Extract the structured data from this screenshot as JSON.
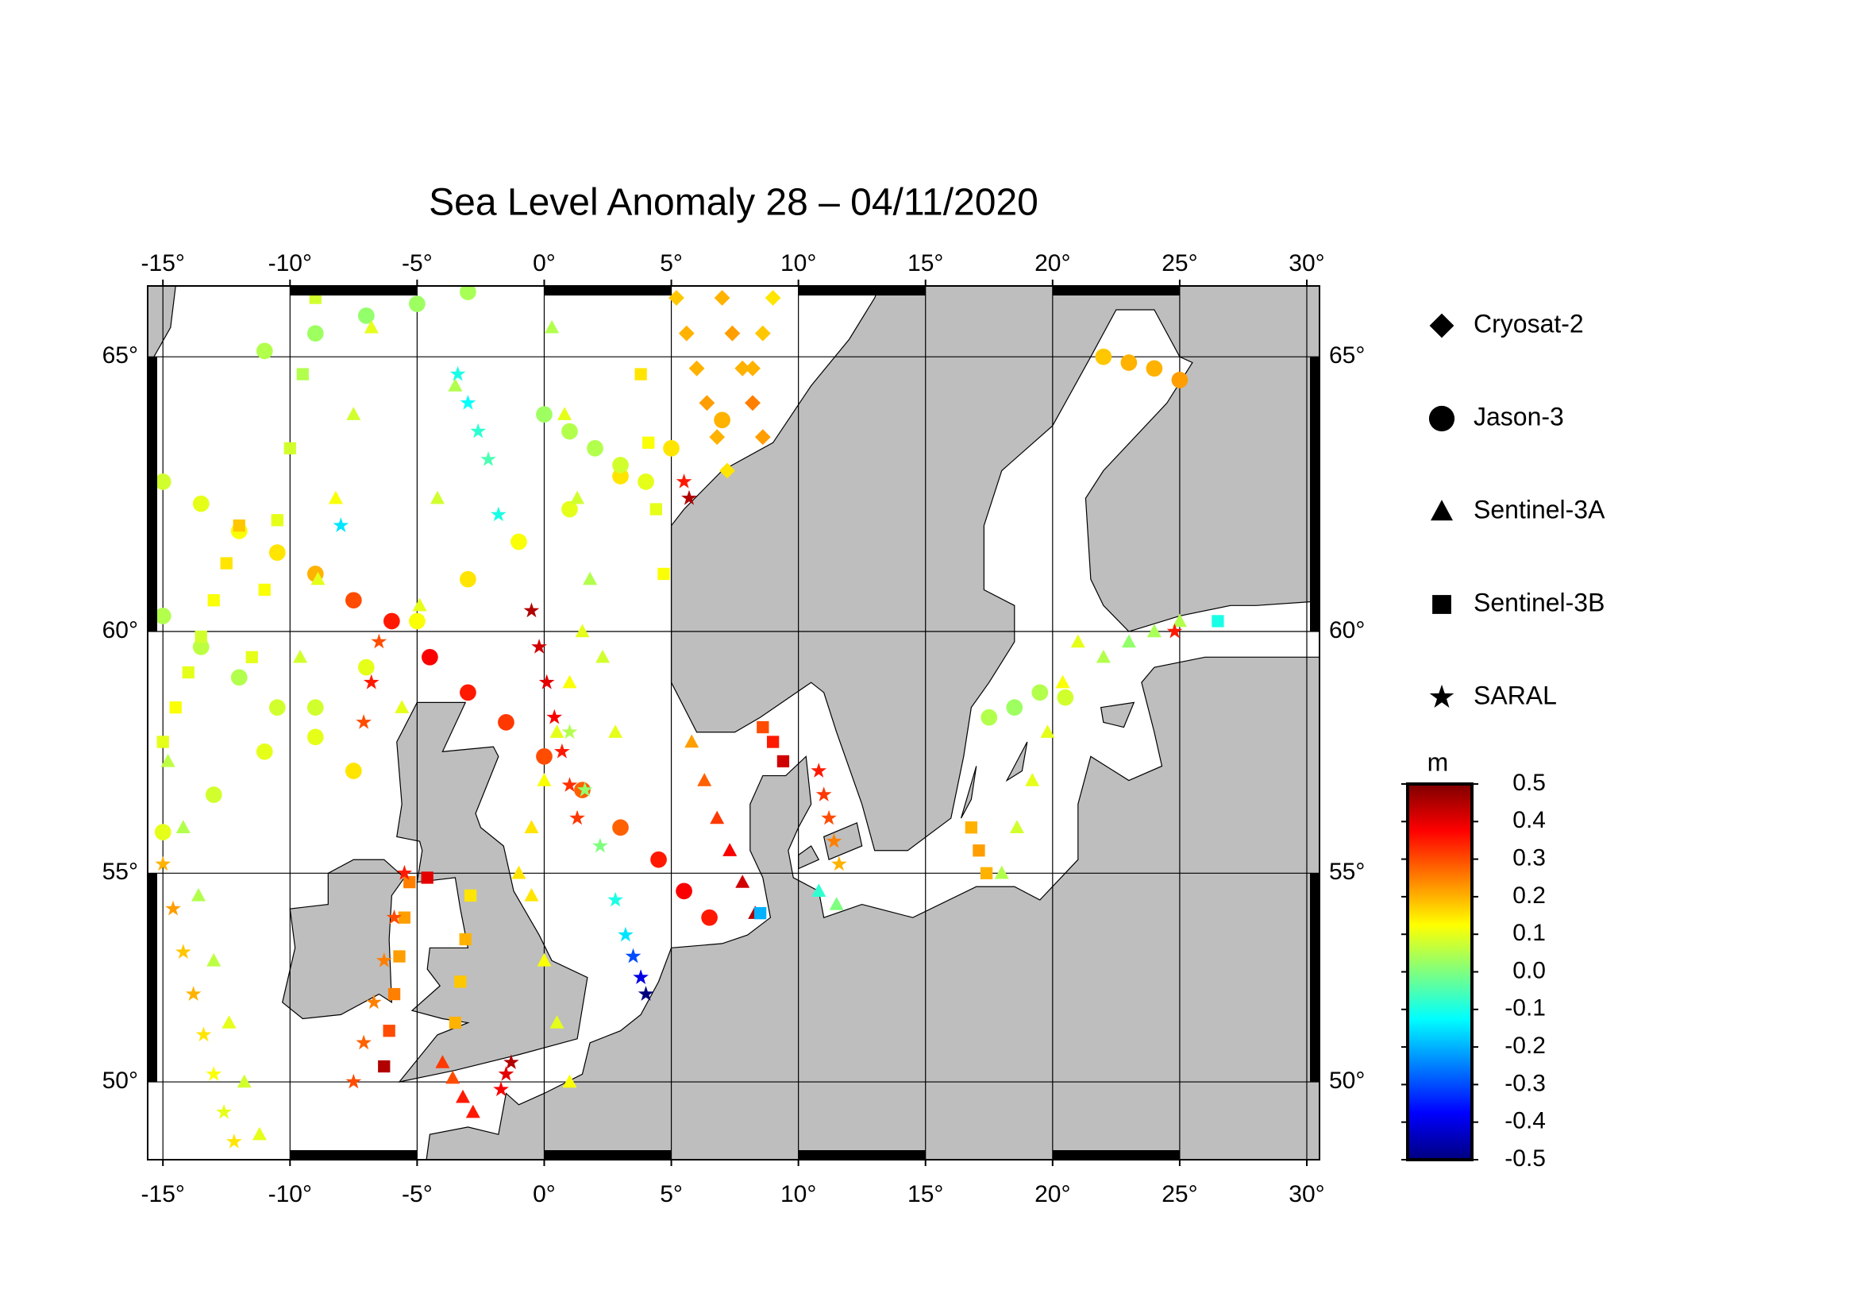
{
  "chart_data": {
    "type": "map-scatter",
    "title": "Sea Level Anomaly 28 – 04/11/2020",
    "xlim": [
      -15.6,
      30.5
    ],
    "ylim": [
      47.9,
      66.2
    ],
    "xticks": [
      {
        "value": -15,
        "label": "-15°"
      },
      {
        "value": -10,
        "label": "-10°"
      },
      {
        "value": -5,
        "label": "-5°"
      },
      {
        "value": 0,
        "label": "0°"
      },
      {
        "value": 5,
        "label": "5°"
      },
      {
        "value": 10,
        "label": "10°"
      },
      {
        "value": 15,
        "label": "15°"
      },
      {
        "value": 20,
        "label": "20°"
      },
      {
        "value": 25,
        "label": "25°"
      },
      {
        "value": 30,
        "label": "30°"
      }
    ],
    "yticks": [
      {
        "value": 50,
        "label": "50°"
      },
      {
        "value": 55,
        "label": "55°"
      },
      {
        "value": 60,
        "label": "60°"
      },
      {
        "value": 65,
        "label": "65°"
      }
    ],
    "grid": true,
    "land_color": "#bebebe",
    "colorbar_label": "m",
    "clim": [
      -0.5,
      0.5
    ],
    "cticks": [
      -0.5,
      -0.4,
      -0.3,
      -0.2,
      -0.1,
      {
        "value": 0,
        "label": "0.0"
      },
      0.1,
      0.2,
      0.3,
      0.4,
      0.5
    ],
    "colormap": [
      "#00007f",
      "#0000ff",
      "#007fff",
      "#00ffff",
      "#7fff7f",
      "#ffff00",
      "#ff7f00",
      "#ff0000",
      "#7f0000"
    ],
    "series": [
      {
        "name": "Cryosat-2",
        "marker": "diamond",
        "x": [
          5.2,
          5.6,
          6.0,
          6.4,
          6.8,
          7.2,
          7.0,
          7.4,
          7.8,
          8.2,
          8.6,
          9.0,
          8.6,
          8.2
        ],
        "y": [
          66.0,
          65.4,
          64.8,
          64.2,
          63.6,
          63.0,
          66.0,
          65.4,
          64.8,
          64.2,
          63.6,
          66.0,
          65.4,
          64.8
        ],
        "values": [
          0.18,
          0.2,
          0.2,
          0.22,
          0.2,
          0.15,
          0.2,
          0.22,
          0.2,
          0.25,
          0.22,
          0.15,
          0.18,
          0.2
        ]
      },
      {
        "name": "Jason-3",
        "marker": "circle",
        "x": [
          -15,
          -13.5,
          -12,
          -10.5,
          -9,
          -7.5,
          -6,
          -4.5,
          -3,
          -1.5,
          0,
          1.5,
          3,
          4.5,
          5.5,
          6.5,
          -15,
          -13,
          -11,
          -9,
          -7,
          -5,
          -3,
          -1,
          1,
          3,
          5,
          7,
          -15,
          -13.5,
          -12,
          -10.5,
          -9,
          -7.5,
          -11,
          -9,
          -7,
          -5,
          -3,
          0,
          1,
          2,
          3,
          4,
          22,
          23,
          24,
          25,
          17.5,
          18.5,
          19.5,
          20.5
        ],
        "y": [
          62.8,
          62.4,
          61.9,
          61.5,
          61.1,
          60.6,
          60.2,
          59.5,
          58.8,
          58.2,
          57.5,
          56.8,
          56.0,
          55.3,
          54.6,
          54.0,
          55.9,
          56.7,
          57.6,
          58.5,
          59.3,
          60.2,
          61.0,
          61.7,
          62.3,
          62.9,
          63.4,
          63.9,
          60.3,
          59.7,
          59.1,
          58.5,
          57.9,
          57.2,
          65.1,
          65.4,
          65.7,
          65.9,
          66.1,
          64.0,
          63.7,
          63.4,
          63.1,
          62.8,
          65.0,
          64.9,
          64.8,
          64.6,
          58.3,
          58.5,
          58.8,
          58.7
        ],
        "values": [
          0.08,
          0.1,
          0.12,
          0.15,
          0.2,
          0.3,
          0.35,
          0.38,
          0.35,
          0.32,
          0.3,
          0.28,
          0.28,
          0.35,
          0.38,
          0.35,
          0.1,
          0.08,
          0.1,
          0.08,
          0.1,
          0.12,
          0.15,
          0.12,
          0.1,
          0.15,
          0.15,
          0.2,
          0.05,
          0.06,
          0.05,
          0.08,
          0.1,
          0.15,
          0.05,
          0.03,
          0.02,
          0.03,
          0.04,
          0.03,
          0.05,
          0.05,
          0.08,
          0.1,
          0.18,
          0.2,
          0.2,
          0.22,
          0.05,
          0.03,
          0.05,
          0.08
        ]
      },
      {
        "name": "Sentinel-3A",
        "marker": "triangle",
        "x": [
          -11.2,
          -11.8,
          -12.4,
          -13,
          -13.6,
          -14.2,
          -14.8,
          -6.8,
          -7.5,
          -8.2,
          -8.9,
          -9.6,
          -3.5,
          -4.2,
          -4.9,
          -5.6,
          -1,
          -0.5,
          0,
          0.5,
          1,
          1.5,
          1,
          0.5,
          0,
          -0.5,
          5.8,
          6.3,
          6.8,
          7.3,
          7.8,
          8.3,
          -2.8,
          -3.2,
          -3.6,
          -4,
          18,
          18.6,
          19.2,
          19.8,
          20.4,
          21,
          22,
          23,
          24,
          25,
          0.3,
          0.8,
          1.3,
          1.8,
          2.3,
          2.8,
          10.8,
          11.5
        ],
        "y": [
          48.6,
          50,
          51.5,
          53,
          54.5,
          56,
          57.4,
          65.5,
          64,
          62.5,
          61,
          59.5,
          64.5,
          62.5,
          60.5,
          58.5,
          55,
          56,
          57,
          58,
          59,
          60,
          50,
          51.5,
          53,
          54.5,
          57.8,
          57,
          56.2,
          55.5,
          54.8,
          54.1,
          49.2,
          49.6,
          50.1,
          50.5,
          55,
          56,
          57,
          58,
          59,
          59.8,
          59.5,
          59.8,
          60,
          60.2,
          65.5,
          64,
          62.5,
          61,
          59.5,
          58,
          54.6,
          54.3
        ],
        "values": [
          0.1,
          0.08,
          0.1,
          0.06,
          0.05,
          0.05,
          0.06,
          0.1,
          0.08,
          0.12,
          0.1,
          0.08,
          0.05,
          0.08,
          0.1,
          0.1,
          0.15,
          0.15,
          0.12,
          0.1,
          0.12,
          0.1,
          0.12,
          0.1,
          0.12,
          0.15,
          0.22,
          0.28,
          0.32,
          0.38,
          0.42,
          0.45,
          0.35,
          0.35,
          0.3,
          0.32,
          0.05,
          0.08,
          0.1,
          0.1,
          0.12,
          0.1,
          0.05,
          0.02,
          0.04,
          0.05,
          0.05,
          0.1,
          0.08,
          0.05,
          0.08,
          0.1,
          -0.08,
          0
        ]
      },
      {
        "name": "Sentinel-3B",
        "marker": "square",
        "x": [
          -6.3,
          -6.1,
          -5.9,
          -5.7,
          -5.5,
          -5.3,
          -15,
          -14.5,
          -14,
          -13.5,
          -13,
          -12.5,
          -12,
          -11.5,
          -11,
          -10.5,
          -10,
          -9.5,
          -9,
          16.8,
          17.1,
          17.4,
          8.6,
          9,
          9.4,
          -3.5,
          -3.3,
          -3.1,
          -2.9,
          8.5,
          3.8,
          4.1,
          4.4,
          4.7,
          26.5,
          -4.6
        ],
        "y": [
          50.4,
          51.3,
          52.2,
          53.1,
          54,
          54.8,
          57.8,
          58.5,
          59.2,
          59.9,
          60.6,
          61.3,
          62,
          59.5,
          60.8,
          62.1,
          63.4,
          64.7,
          66,
          56,
          55.5,
          55,
          58.1,
          57.8,
          57.4,
          51.5,
          52.5,
          53.5,
          54.5,
          54.1,
          64.7,
          63.5,
          62.3,
          61.1,
          60.2,
          54.9
        ],
        "values": [
          0.45,
          0.3,
          0.25,
          0.22,
          0.22,
          0.25,
          0.1,
          0.12,
          0.1,
          0.08,
          0.12,
          0.15,
          0.18,
          0.1,
          0.12,
          0.1,
          0.08,
          0.05,
          0.08,
          0.2,
          0.22,
          0.2,
          0.3,
          0.35,
          0.42,
          0.2,
          0.18,
          0.2,
          0.15,
          -0.2,
          0.15,
          0.12,
          0.1,
          0.12,
          -0.1,
          0.4
        ]
      },
      {
        "name": "SARAL",
        "marker": "star",
        "x": [
          1,
          1.6,
          2.2,
          2.8,
          3.2,
          3.5,
          3.8,
          4,
          -0.5,
          -0.2,
          0.1,
          0.4,
          0.7,
          1,
          1.3,
          -7.5,
          -7.1,
          -6.7,
          -6.3,
          -5.9,
          -5.5,
          -15,
          -14.6,
          -14.2,
          -13.8,
          -13.4,
          -13,
          -12.6,
          -12.2,
          -3.4,
          -3,
          -2.6,
          -2.2,
          -1.8,
          10.8,
          11,
          11.2,
          11.4,
          11.6,
          5.5,
          5.7,
          -8,
          24.8,
          -1.3,
          -1.5,
          -1.7,
          -6.5,
          -6.8,
          -7.1
        ],
        "y": [
          58,
          56.8,
          55.6,
          54.4,
          53.6,
          53.1,
          52.6,
          52.2,
          60.4,
          59.7,
          59,
          58.3,
          57.6,
          56.9,
          56.2,
          50,
          51,
          52,
          53,
          54,
          55,
          55.2,
          54.2,
          53.2,
          52.2,
          51.2,
          50.2,
          49.2,
          48.4,
          64.7,
          64.2,
          63.7,
          63.2,
          62.2,
          57.2,
          56.7,
          56.2,
          55.7,
          55.2,
          62.8,
          62.5,
          62,
          60,
          50.5,
          50.2,
          49.8,
          59.8,
          59,
          58.2
        ],
        "values": [
          0.05,
          0.02,
          0,
          -0.1,
          -0.15,
          -0.3,
          -0.4,
          -0.5,
          0.45,
          0.42,
          0.4,
          0.38,
          0.35,
          0.33,
          0.32,
          0.3,
          0.28,
          0.25,
          0.25,
          0.3,
          0.35,
          0.2,
          0.22,
          0.18,
          0.2,
          0.15,
          0.12,
          0.1,
          0.15,
          -0.1,
          -0.12,
          -0.08,
          -0.05,
          -0.1,
          0.35,
          0.32,
          0.3,
          0.25,
          0.2,
          0.35,
          0.45,
          -0.15,
          0.35,
          0.45,
          0.4,
          0.38,
          0.3,
          0.35,
          0.3
        ]
      }
    ]
  }
}
